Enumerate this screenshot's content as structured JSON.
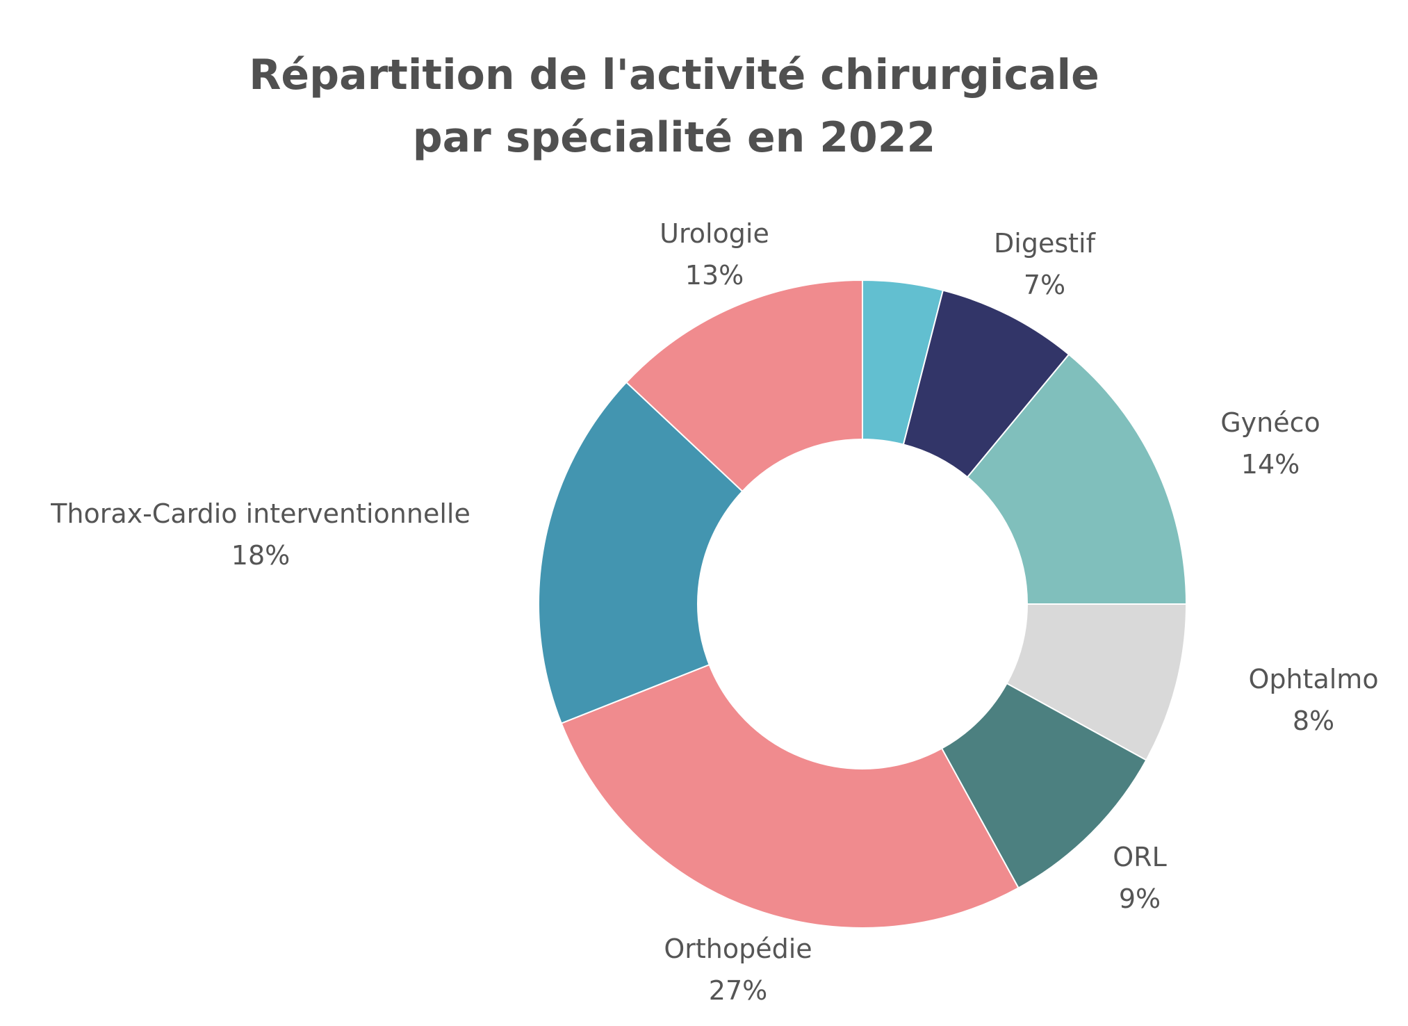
{
  "chart_data": {
    "type": "donut",
    "title_lines": [
      "Répartition de l'activité chirurgicale",
      "par spécialité en 2022"
    ],
    "start_angle_deg": 0,
    "direction": "clockwise",
    "slices": [
      {
        "category": "",
        "value": 4,
        "value_label": "",
        "color": "#62BFD0"
      },
      {
        "category": "Digestif",
        "value": 7,
        "value_label": "7%",
        "color": "#323568"
      },
      {
        "category": "Gynéco",
        "value": 14,
        "value_label": "14%",
        "color": "#80BFBC"
      },
      {
        "category": "Ophtalmo",
        "value": 8,
        "value_label": "8%",
        "color": "#D9D9D9"
      },
      {
        "category": "ORL",
        "value": 9,
        "value_label": "9%",
        "color": "#4C8080"
      },
      {
        "category": "Orthopédie",
        "value": 27,
        "value_label": "27%",
        "color": "#F08B8E"
      },
      {
        "category": "Thorax-Cardio interventionnelle",
        "value": 18,
        "value_label": "18%",
        "color": "#4395B0"
      },
      {
        "category": "Urologie",
        "value": 13,
        "value_label": "13%",
        "color": "#F08B8E"
      }
    ],
    "legend": "none",
    "data_labels": "outside, category and percentage"
  }
}
